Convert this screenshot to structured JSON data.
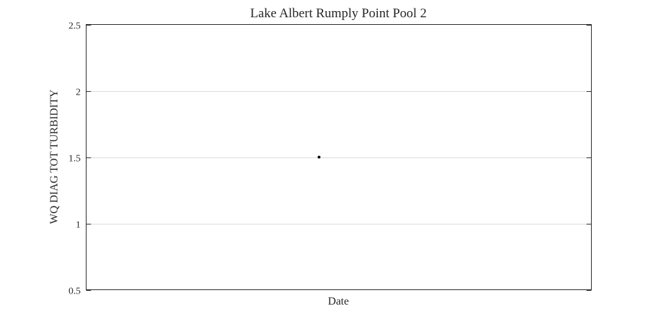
{
  "chart_data": {
    "type": "scatter",
    "title": "Lake Albert Rumply Point Pool 2",
    "xlabel": "Date",
    "ylabel": "WQ DIAG TOT TURBIDITY",
    "ylim": [
      0.5,
      2.5
    ],
    "yticks": [
      0.5,
      1,
      1.5,
      2,
      2.5
    ],
    "ytick_labels": [
      "0.5",
      "1",
      "1.5",
      "2",
      "2.5"
    ],
    "grid": "y-major",
    "marker_color": "#000000",
    "series": [
      {
        "points": [
          {
            "x": "",
            "y": 1.5
          }
        ]
      }
    ]
  }
}
